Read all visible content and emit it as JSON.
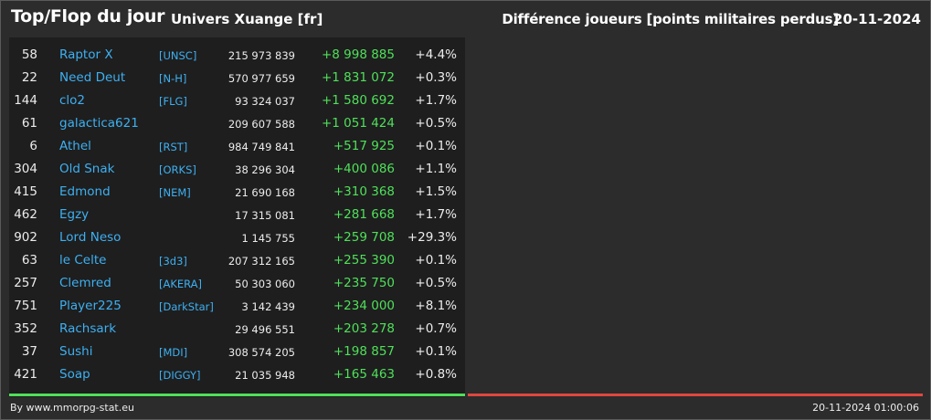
{
  "header": {
    "title": "Top/Flop du jour",
    "universe": "Univers Xuange [fr]",
    "subtitle": "Différence joueurs [points militaires perdus]",
    "date": "20-11-2024"
  },
  "colors": {
    "positive": "#4fe05a",
    "negative": "#e0473f",
    "link": "#3db0f2"
  },
  "top_rows": [
    {
      "rank": "58",
      "name": "Raptor X",
      "tag": "[UNSC]",
      "total": "215 973 839",
      "diff": "+8 998 885",
      "pct": "+4.4%"
    },
    {
      "rank": "22",
      "name": "Need Deut",
      "tag": "[N-H]",
      "total": "570 977 659",
      "diff": "+1 831 072",
      "pct": "+0.3%"
    },
    {
      "rank": "144",
      "name": "clo2",
      "tag": "[FLG]",
      "total": "93 324 037",
      "diff": "+1 580 692",
      "pct": "+1.7%"
    },
    {
      "rank": "61",
      "name": "galactica621",
      "tag": "",
      "total": "209 607 588",
      "diff": "+1 051 424",
      "pct": "+0.5%"
    },
    {
      "rank": "6",
      "name": "Athel",
      "tag": "[RST]",
      "total": "984 749 841",
      "diff": "+517 925",
      "pct": "+0.1%"
    },
    {
      "rank": "304",
      "name": "Old Snak",
      "tag": "[ORKS]",
      "total": "38 296 304",
      "diff": "+400 086",
      "pct": "+1.1%"
    },
    {
      "rank": "415",
      "name": "Edmond",
      "tag": "[NEM]",
      "total": "21 690 168",
      "diff": "+310 368",
      "pct": "+1.5%"
    },
    {
      "rank": "462",
      "name": "Egzy",
      "tag": "",
      "total": "17 315 081",
      "diff": "+281 668",
      "pct": "+1.7%"
    },
    {
      "rank": "902",
      "name": "Lord Neso",
      "tag": "",
      "total": "1 145 755",
      "diff": "+259 708",
      "pct": "+29.3%"
    },
    {
      "rank": "63",
      "name": "le Celte",
      "tag": "[3d3]",
      "total": "207 312 165",
      "diff": "+255 390",
      "pct": "+0.1%"
    },
    {
      "rank": "257",
      "name": "Clemred",
      "tag": "[AKERA]",
      "total": "50 303 060",
      "diff": "+235 750",
      "pct": "+0.5%"
    },
    {
      "rank": "751",
      "name": "Player225",
      "tag": "[DarkStar]",
      "total": "3 142 439",
      "diff": "+234 000",
      "pct": "+8.1%"
    },
    {
      "rank": "352",
      "name": "Rachsark",
      "tag": "",
      "total": "29 496 551",
      "diff": "+203 278",
      "pct": "+0.7%"
    },
    {
      "rank": "37",
      "name": "Sushi",
      "tag": "[MDI]",
      "total": "308 574 205",
      "diff": "+198 857",
      "pct": "+0.1%"
    },
    {
      "rank": "421",
      "name": "Soap",
      "tag": "[DIGGY]",
      "total": "21 035 948",
      "diff": "+165 463",
      "pct": "+0.8%"
    }
  ],
  "footer": {
    "source": "By www.mmorpg-stat.eu",
    "timestamp": "20-11-2024 01:00:06"
  }
}
